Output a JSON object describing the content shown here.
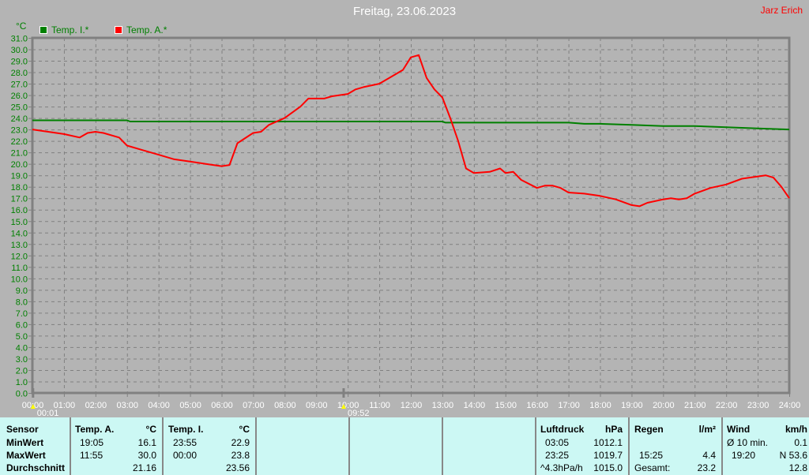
{
  "header": {
    "title": "Freitag, 23.06.2023",
    "author": "Jarz Erich"
  },
  "chart_data": {
    "type": "line",
    "ylabel": "°C",
    "ylim": [
      0,
      31
    ],
    "xlim": [
      0,
      24
    ],
    "grid": true,
    "legend_placement": "top-left",
    "xticks": [
      "00:00",
      "01:00",
      "02:00",
      "03:00",
      "04:00",
      "05:00",
      "06:00",
      "07:00",
      "08:00",
      "09:00",
      "10:00",
      "11:00",
      "12:00",
      "13:00",
      "14:00",
      "15:00",
      "16:00",
      "17:00",
      "18:00",
      "19:00",
      "20:00",
      "21:00",
      "22:00",
      "23:00",
      "24:00"
    ],
    "markers": [
      {
        "label": "00:01",
        "x": 0.02
      },
      {
        "label": "09:52",
        "x": 9.87
      }
    ],
    "series": [
      {
        "name": "Temp. I.*",
        "color": "#008000",
        "x": [
          0,
          3,
          3.1,
          13,
          13.1,
          17,
          17.5,
          18,
          19,
          20,
          21,
          22,
          23,
          24
        ],
        "y": [
          23.8,
          23.8,
          23.7,
          23.7,
          23.6,
          23.6,
          23.5,
          23.5,
          23.4,
          23.3,
          23.3,
          23.2,
          23.1,
          23.0
        ]
      },
      {
        "name": "Temp. A.*",
        "color": "#ff0000",
        "x": [
          0,
          0.5,
          1,
          1.5,
          1.75,
          2,
          2.25,
          2.75,
          3,
          3.5,
          4,
          4.5,
          5,
          5.5,
          6,
          6.25,
          6.5,
          7,
          7.25,
          7.5,
          8,
          8.5,
          8.75,
          9.25,
          9.5,
          10,
          10.25,
          10.5,
          11,
          11.5,
          11.75,
          12,
          12.25,
          12.5,
          12.75,
          13,
          13.25,
          13.5,
          13.75,
          14,
          14.5,
          14.83,
          15,
          15.25,
          15.5,
          16,
          16.25,
          16.5,
          16.75,
          17,
          17.5,
          18,
          18.5,
          19,
          19.25,
          19.5,
          20,
          20.25,
          20.5,
          20.75,
          21,
          21.5,
          22,
          22.5,
          23,
          23.25,
          23.5,
          23.75,
          24
        ],
        "y": [
          23.0,
          22.8,
          22.6,
          22.3,
          22.7,
          22.8,
          22.7,
          22.3,
          21.6,
          21.2,
          20.8,
          20.4,
          20.2,
          20.0,
          19.8,
          19.9,
          21.8,
          22.7,
          22.8,
          23.4,
          24.0,
          25.0,
          25.7,
          25.7,
          25.9,
          26.1,
          26.5,
          26.7,
          27.0,
          27.8,
          28.2,
          29.3,
          29.5,
          27.5,
          26.5,
          25.8,
          24.0,
          22.0,
          19.6,
          19.2,
          19.3,
          19.6,
          19.2,
          19.3,
          18.6,
          17.9,
          18.1,
          18.1,
          17.9,
          17.5,
          17.4,
          17.2,
          16.9,
          16.4,
          16.3,
          16.6,
          16.9,
          17.0,
          16.9,
          17.0,
          17.4,
          17.9,
          18.2,
          18.7,
          18.9,
          19.0,
          18.8,
          18.0,
          17.0
        ]
      }
    ]
  },
  "table": {
    "sensor": {
      "h": "Sensor",
      "r1": "MinWert",
      "r2": "MaxWert",
      "r3": "Durchschnitt"
    },
    "tempA": {
      "h": "Temp. A.",
      "unit": "°C",
      "min_t": "19:05",
      "min": "16.1",
      "max_t": "11:55",
      "max": "30.0",
      "avg": "21.16"
    },
    "tempI": {
      "h": "Temp. I.",
      "unit": "°C",
      "min_t": "23:55",
      "min": "22.9",
      "max_t": "00:00",
      "max": "23.8",
      "avg": "23.56"
    },
    "luft": {
      "h": "Luftdruck",
      "unit": "hPa",
      "min_t": "03:05",
      "min": "1012.1",
      "max_t": "23:25",
      "max": "1019.7",
      "trend": "^4.3hPa/h",
      "avg": "1015.0"
    },
    "regen": {
      "h": "Regen",
      "unit": "l/m²",
      "max_t": "15:25",
      "max": "4.4",
      "tot_l": "Gesamt:",
      "tot": "23.2"
    },
    "wind": {
      "h": "Wind",
      "unit": "km/h",
      "avg_l": "Ø 10 min.",
      "avg": "0.1",
      "max_t": "19:20",
      "max": "N 53.6",
      "r3": "12.8"
    }
  }
}
